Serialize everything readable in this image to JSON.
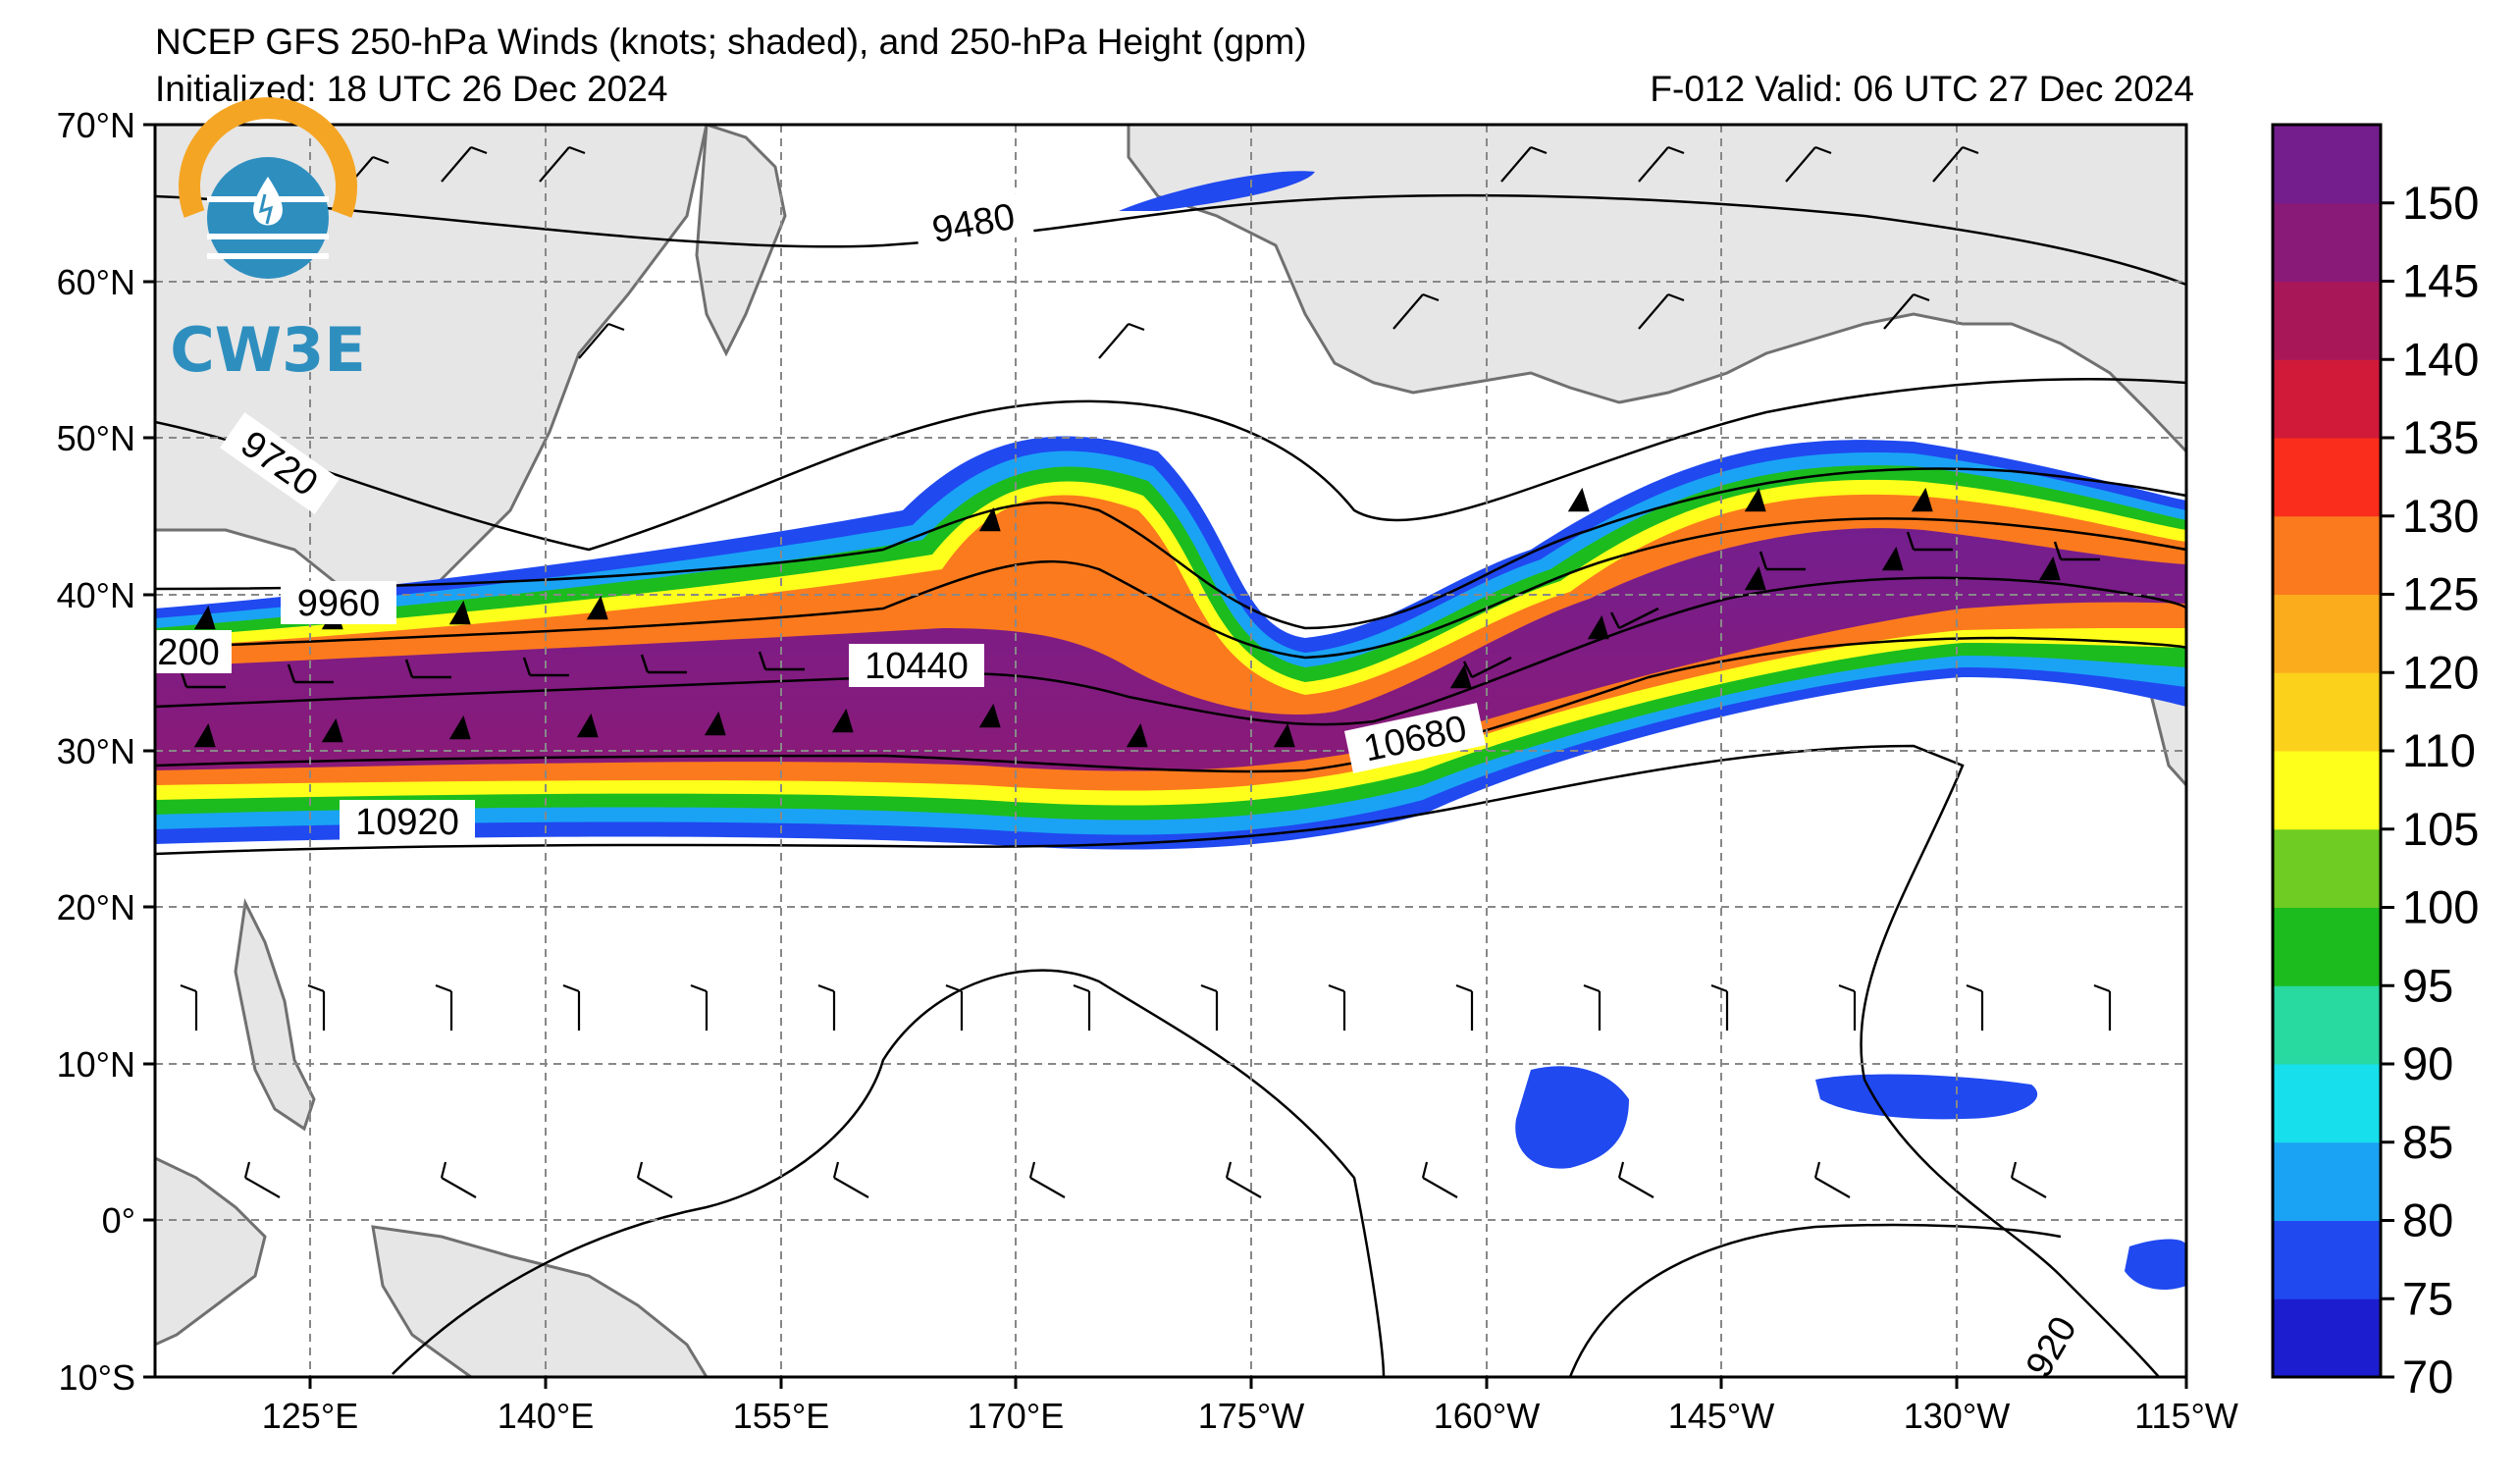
{
  "title": "NCEP GFS 250-hPa Winds (knots; shaded), and 250-hPa Height (gpm)",
  "initialized": "Initialized: 18 UTC 26 Dec 2024",
  "valid": "F-012  Valid: 06 UTC 27 Dec 2024",
  "logo": {
    "text": "CW3E",
    "colors": {
      "arc": "#f5a524",
      "waves": "#2e8fbf"
    }
  },
  "map": {
    "lat_labels": [
      "70°N",
      "60°N",
      "50°N",
      "40°N",
      "30°N",
      "20°N",
      "10°N",
      "0°",
      "10°S"
    ],
    "lon_labels": [
      "125°E",
      "140°E",
      "155°E",
      "170°E",
      "175°W",
      "160°W",
      "145°W",
      "130°W",
      "115°W"
    ],
    "land_color": "#e6e6e6",
    "coast_color": "#707070"
  },
  "contour_labels": [
    "9480",
    "9720",
    "9960",
    "200",
    "10440",
    "10680",
    "10920",
    "920"
  ],
  "colorbar": {
    "ticks": [
      "70",
      "75",
      "80",
      "85",
      "90",
      "95",
      "100",
      "105",
      "110",
      "120",
      "125",
      "130",
      "135",
      "140",
      "145",
      "150"
    ],
    "colors": [
      "#1c1dcf",
      "#2049f0",
      "#1aa3f5",
      "#17e0ec",
      "#28d9a0",
      "#1cbc1e",
      "#6ecc22",
      "#ffff1c",
      "#fbd11b",
      "#fbac1d",
      "#fb7a1d",
      "#fa2d1c",
      "#d11a3a",
      "#a81859",
      "#8a1a78",
      "#741e8e"
    ]
  }
}
